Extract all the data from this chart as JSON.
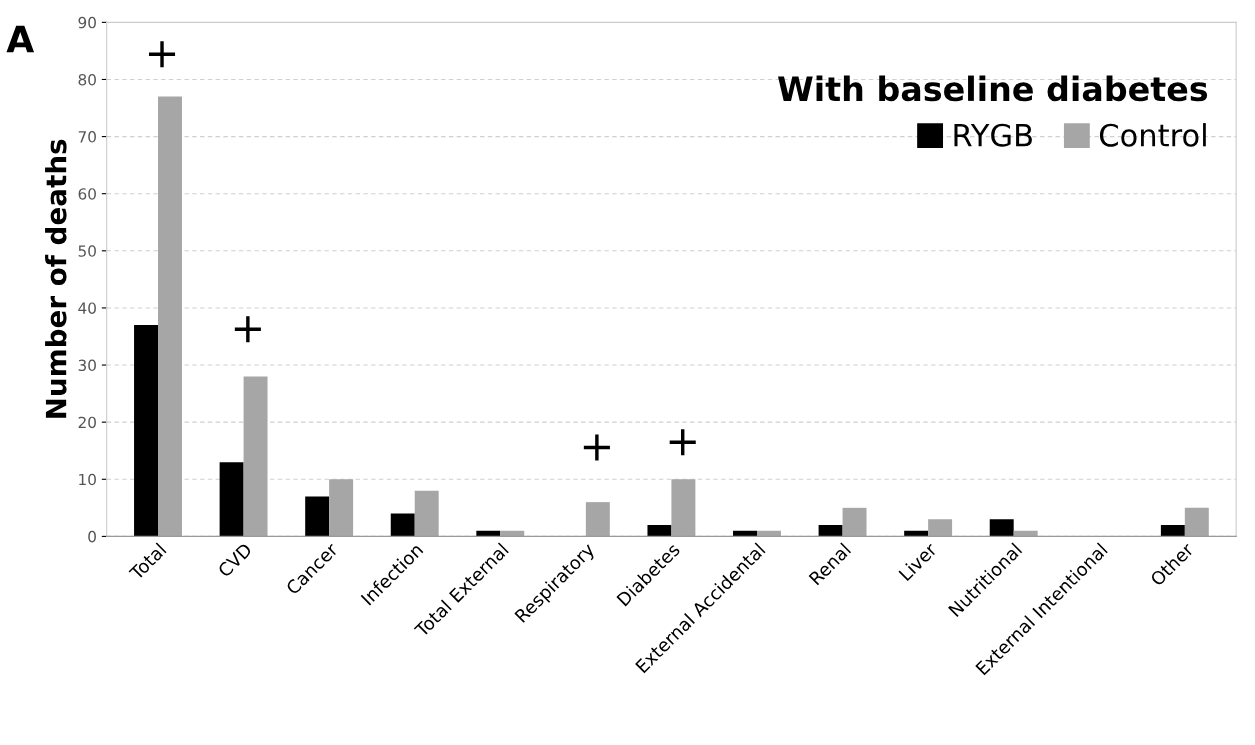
{
  "chart_data": {
    "type": "bar",
    "ylabel": "Number of deaths",
    "legend_title": "With baseline diabetes",
    "legend": "top right",
    "grid": "y",
    "categories": [
      "Total",
      "CVD",
      "Cancer",
      "Infection",
      "Total External",
      "Respiratory",
      "Diabetes",
      "External Accidental",
      "Renal",
      "Liver",
      "Nutritional",
      "External Intentional",
      "Other"
    ],
    "series": [
      {
        "name": "RYGB",
        "color": "#000000",
        "values": [
          37,
          13,
          7,
          4,
          1,
          0,
          2,
          1,
          2,
          1,
          3,
          0,
          2
        ]
      },
      {
        "name": "Control",
        "color": "#a6a6a6",
        "values": [
          77,
          28,
          10,
          8,
          1,
          6,
          10,
          1,
          5,
          3,
          1,
          0,
          5
        ]
      }
    ],
    "ylim": [
      0,
      90
    ],
    "yticks": [
      0,
      10,
      20,
      30,
      40,
      50,
      60,
      70,
      80,
      90
    ],
    "annotations": [
      "A",
      "+",
      "+",
      "+",
      "+"
    ]
  }
}
